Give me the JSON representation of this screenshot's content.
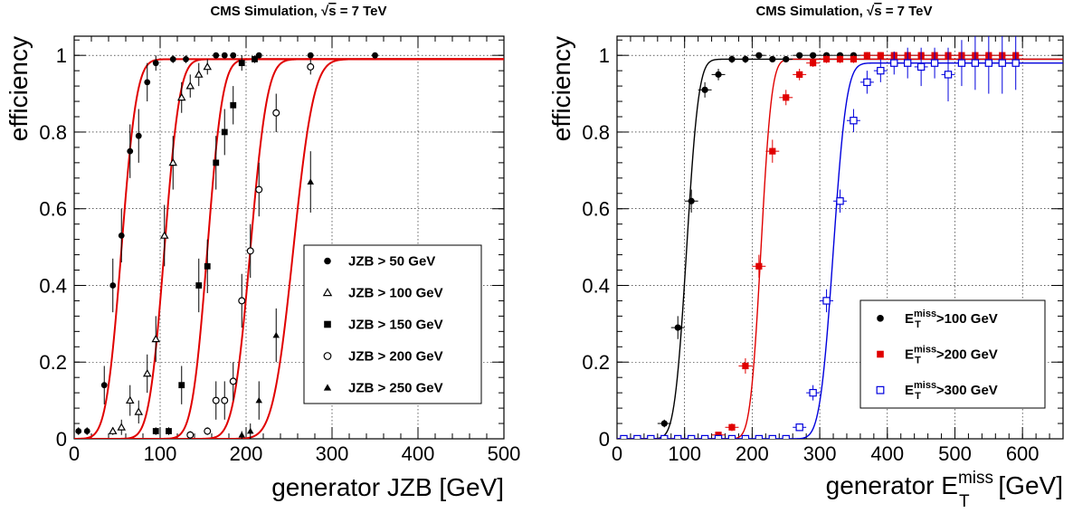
{
  "chart_data": [
    {
      "type": "scatter",
      "title_prefix": "CMS Simulation, ",
      "title_sqrt": "s",
      "title_suffix": " = 7 TeV",
      "xlabel": "generator JZB [GeV]",
      "ylabel": "efficiency",
      "xlim": [
        0,
        500
      ],
      "ylim": [
        0,
        1.05
      ],
      "xticks": [
        0,
        100,
        200,
        300,
        400,
        500
      ],
      "yticks": [
        0,
        0.2,
        0.4,
        0.6,
        0.8,
        1
      ],
      "ytick_labels": [
        "0",
        "0.2",
        "0.4",
        "0.6",
        "0.8",
        "1"
      ],
      "grid": true,
      "legend_position": "center-right",
      "fit_color": "#e00000",
      "series": [
        {
          "name": "JZB >  50 GeV",
          "marker": "filled-circle",
          "color": "#000000",
          "fit_mid": 55,
          "fit_width": 9,
          "fit_plateau": 0.99,
          "x": [
            5,
            15,
            35,
            45,
            55,
            65,
            75,
            85,
            95,
            115,
            130,
            165,
            175,
            185,
            215,
            275,
            350
          ],
          "y": [
            0.02,
            0.02,
            0.14,
            0.4,
            0.53,
            0.75,
            0.79,
            0.93,
            0.98,
            0.99,
            0.99,
            1.0,
            1.0,
            1.0,
            1.0,
            1.0,
            1.0
          ],
          "yerr": [
            0.01,
            0.01,
            0.05,
            0.07,
            0.07,
            0.07,
            0.07,
            0.05,
            0.02,
            0.01,
            0.01,
            0.005,
            0.005,
            0.005,
            0.005,
            0.005,
            0.005
          ]
        },
        {
          "name": "JZB > 100 GeV",
          "marker": "open-triangle",
          "color": "#000000",
          "fit_mid": 105,
          "fit_width": 9,
          "fit_plateau": 0.99,
          "x": [
            45,
            55,
            65,
            75,
            85,
            95,
            105,
            115,
            125,
            135,
            145,
            155
          ],
          "y": [
            0.02,
            0.03,
            0.1,
            0.07,
            0.17,
            0.26,
            0.53,
            0.72,
            0.89,
            0.92,
            0.95,
            0.97
          ],
          "yerr": [
            0.01,
            0.02,
            0.04,
            0.03,
            0.05,
            0.06,
            0.08,
            0.07,
            0.04,
            0.03,
            0.03,
            0.02
          ]
        },
        {
          "name": "JZB > 150 GeV",
          "marker": "filled-square",
          "color": "#000000",
          "fit_mid": 155,
          "fit_width": 9,
          "fit_plateau": 0.99,
          "x": [
            95,
            110,
            125,
            145,
            155,
            165,
            175,
            185,
            195,
            210
          ],
          "y": [
            0.02,
            0.02,
            0.14,
            0.4,
            0.45,
            0.72,
            0.8,
            0.87,
            0.98,
            0.99
          ],
          "yerr": [
            0.01,
            0.01,
            0.05,
            0.07,
            0.07,
            0.07,
            0.06,
            0.05,
            0.02,
            0.01
          ]
        },
        {
          "name": "JZB > 200 GeV",
          "marker": "open-circle",
          "color": "#000000",
          "fit_mid": 205,
          "fit_width": 10,
          "fit_plateau": 0.99,
          "x": [
            135,
            155,
            165,
            175,
            185,
            195,
            205,
            215,
            235,
            275
          ],
          "y": [
            0.01,
            0.02,
            0.1,
            0.1,
            0.15,
            0.36,
            0.49,
            0.65,
            0.85,
            0.97
          ],
          "yerr": [
            0.01,
            0.01,
            0.05,
            0.05,
            0.05,
            0.07,
            0.07,
            0.07,
            0.05,
            0.02
          ]
        },
        {
          "name": "JZB > 250 GeV",
          "marker": "filled-triangle",
          "color": "#000000",
          "fit_mid": 255,
          "fit_width": 12,
          "fit_plateau": 0.99,
          "x": [
            195,
            205,
            215,
            235,
            275
          ],
          "y": [
            0.01,
            0.02,
            0.1,
            0.27,
            0.67
          ],
          "yerr": [
            0.01,
            0.02,
            0.05,
            0.07,
            0.08
          ]
        }
      ]
    },
    {
      "type": "scatter",
      "title_prefix": "CMS Simulation, ",
      "title_sqrt": "s",
      "title_suffix": " = 7 TeV",
      "xlabel_main": "generator E",
      "xlabel_sup": "miss",
      "xlabel_sub": "T",
      "xlabel_unit": " [GeV]",
      "ylabel": "efficiency",
      "xlim": [
        0,
        660
      ],
      "ylim": [
        0,
        1.05
      ],
      "xticks": [
        0,
        100,
        200,
        300,
        400,
        500,
        600
      ],
      "yticks": [
        0,
        0.2,
        0.4,
        0.6,
        0.8,
        1
      ],
      "ytick_labels": [
        "0",
        "0.2",
        "0.4",
        "0.6",
        "0.8",
        "1"
      ],
      "grid": true,
      "legend_position": "bottom-right",
      "series": [
        {
          "name_main": "E",
          "name_sup": "miss",
          "name_sub": "T",
          "name_rest": ">100 GeV",
          "marker": "filled-circle",
          "color": "#000000",
          "fit_mid": 103,
          "fit_width": 9,
          "fit_plateau": 0.99,
          "x": [
            10,
            30,
            50,
            70,
            90,
            110,
            130,
            150,
            170,
            190,
            210,
            230,
            250,
            270,
            290,
            310,
            330,
            350,
            370,
            390,
            410,
            430,
            450,
            470,
            490,
            510,
            530,
            550,
            570,
            590
          ],
          "y": [
            0.0,
            0.0,
            0.0,
            0.04,
            0.29,
            0.62,
            0.91,
            0.95,
            0.99,
            0.99,
            1.0,
            0.99,
            0.99,
            1.0,
            1.0,
            1.0,
            1.0,
            1.0,
            1.0,
            1.0,
            1.0,
            1.0,
            1.0,
            1.0,
            1.0,
            1.0,
            1.0,
            1.0,
            1.0,
            1.0
          ],
          "yerr": [
            0.002,
            0.002,
            0.002,
            0.01,
            0.03,
            0.03,
            0.02,
            0.015,
            0.01,
            0.01,
            0.005,
            0.005,
            0.005,
            0.005,
            0.005,
            0.005,
            0.005,
            0.005,
            0.005,
            0.005,
            0.005,
            0.005,
            0.005,
            0.005,
            0.005,
            0.005,
            0.005,
            0.005,
            0.005,
            0.005
          ]
        },
        {
          "name_main": "E",
          "name_sup": "miss",
          "name_sub": "T",
          "name_rest": ">200 GeV",
          "marker": "filled-square",
          "color": "#e00000",
          "fit_mid": 213,
          "fit_width": 8,
          "fit_plateau": 0.99,
          "x": [
            10,
            30,
            50,
            70,
            90,
            110,
            130,
            150,
            170,
            190,
            210,
            230,
            250,
            270,
            290,
            310,
            330,
            350,
            370,
            390,
            410,
            430,
            450,
            470,
            490,
            510,
            530,
            550,
            570,
            590
          ],
          "y": [
            0.0,
            0.0,
            0.0,
            0.0,
            0.0,
            0.0,
            0.0,
            0.01,
            0.03,
            0.19,
            0.45,
            0.75,
            0.89,
            0.95,
            0.98,
            0.99,
            0.99,
            0.99,
            1.0,
            1.0,
            1.0,
            1.0,
            1.0,
            1.0,
            1.0,
            1.0,
            1.0,
            1.0,
            1.0,
            1.0
          ],
          "yerr": [
            0.002,
            0.002,
            0.002,
            0.002,
            0.002,
            0.002,
            0.002,
            0.005,
            0.01,
            0.02,
            0.03,
            0.03,
            0.02,
            0.015,
            0.01,
            0.01,
            0.01,
            0.01,
            0.005,
            0.005,
            0.005,
            0.005,
            0.005,
            0.005,
            0.005,
            0.005,
            0.005,
            0.005,
            0.005,
            0.005
          ]
        },
        {
          "name_main": "E",
          "name_sup": "miss",
          "name_sub": "T",
          "name_rest": ">300 GeV",
          "marker": "open-square",
          "color": "#0000dd",
          "fit_mid": 320,
          "fit_width": 10,
          "fit_plateau": 0.98,
          "x": [
            10,
            30,
            50,
            70,
            90,
            110,
            130,
            150,
            170,
            190,
            210,
            230,
            250,
            270,
            290,
            310,
            330,
            350,
            370,
            390,
            410,
            430,
            450,
            470,
            490,
            510,
            530,
            550,
            570,
            590
          ],
          "y": [
            0.0,
            0.0,
            0.0,
            0.0,
            0.0,
            0.0,
            0.0,
            0.0,
            0.0,
            0.0,
            0.0,
            0.0,
            0.0,
            0.03,
            0.12,
            0.36,
            0.62,
            0.83,
            0.93,
            0.96,
            0.98,
            0.98,
            0.97,
            0.98,
            0.95,
            0.98,
            0.98,
            0.98,
            0.98,
            0.98
          ],
          "yerr": [
            0.002,
            0.002,
            0.002,
            0.002,
            0.002,
            0.002,
            0.002,
            0.002,
            0.002,
            0.002,
            0.002,
            0.002,
            0.003,
            0.01,
            0.02,
            0.03,
            0.03,
            0.03,
            0.03,
            0.03,
            0.03,
            0.04,
            0.05,
            0.04,
            0.07,
            0.06,
            0.07,
            0.08,
            0.08,
            0.07
          ]
        }
      ]
    }
  ]
}
